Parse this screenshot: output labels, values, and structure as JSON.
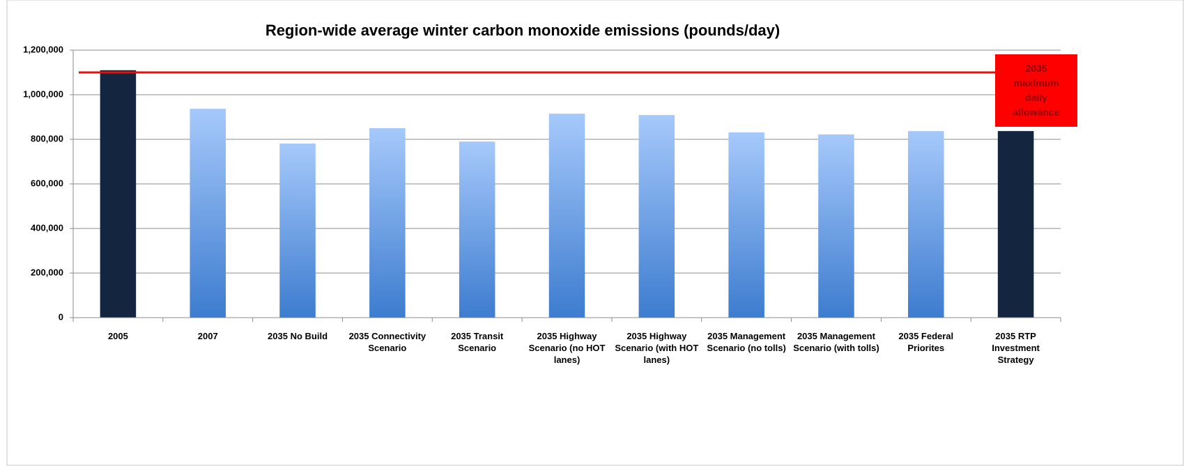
{
  "chart_data": {
    "type": "bar",
    "title": "Region-wide average winter carbon monoxide emissions (pounds/day)",
    "categories": [
      "2005",
      "2007",
      "2035 No Build",
      "2035 Connectivity Scenario",
      "2035 Transit Scenario",
      "2035 Highway Scenario (no HOT lanes)",
      "2035 Highway Scenario (with HOT lanes)",
      "2035 Management Scenario (no tolls)",
      "2035 Management Scenario (with tolls)",
      "2035 Federal Priorites",
      "2035 RTP Investment Strategy"
    ],
    "values": [
      1110000,
      937000,
      781000,
      850000,
      790000,
      915000,
      909000,
      831000,
      822000,
      837000,
      837000
    ],
    "colors": [
      "#14263f",
      [
        "#a6c9fb",
        "#3d7ccf"
      ],
      [
        "#a6c9fb",
        "#3d7ccf"
      ],
      [
        "#a6c9fb",
        "#3d7ccf"
      ],
      [
        "#a6c9fb",
        "#3d7ccf"
      ],
      [
        "#a6c9fb",
        "#3d7ccf"
      ],
      [
        "#a6c9fb",
        "#3d7ccf"
      ],
      [
        "#a6c9fb",
        "#3d7ccf"
      ],
      [
        "#a6c9fb",
        "#3d7ccf"
      ],
      [
        "#a6c9fb",
        "#3d7ccf"
      ],
      "#14263f"
    ],
    "ylim": [
      0,
      1200000
    ],
    "yticks": [
      0,
      {
        "value": 200000,
        "label": "200,000"
      },
      {
        "value": 400000,
        "label": "400,000"
      },
      {
        "value": 600000,
        "label": "600,000"
      },
      {
        "value": 800000,
        "label": "800,000"
      },
      {
        "value": 1000000,
        "label": "1,000,000"
      },
      {
        "value": 1200000,
        "label": "1,200,000"
      }
    ],
    "grid": true,
    "reference_line": {
      "value": 1100000,
      "color": "#e3120b",
      "label": "2035 maximum daily allowance"
    }
  }
}
